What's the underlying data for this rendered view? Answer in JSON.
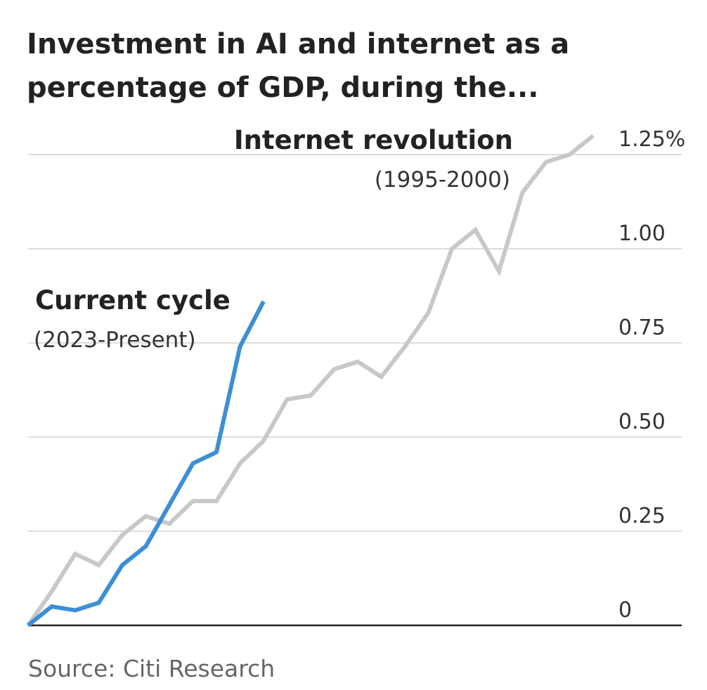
{
  "chart_data": {
    "type": "line",
    "title": [
      "Investment in AI and internet as a",
      "percentage of GDP, during the..."
    ],
    "ylim": [
      0,
      1.25
    ],
    "yticks": [
      0,
      0.25,
      0.5,
      0.75,
      1.0,
      1.25
    ],
    "ytick_labels": [
      "0",
      "0.25",
      "0.50",
      "0.75",
      "1.00",
      "1.25%"
    ],
    "grid": true,
    "y_axis_position": "right",
    "source": "Source: Citi Research",
    "series": [
      {
        "name": "Internet revolution",
        "period": "(1995-2000)",
        "color": "#c8c8c8",
        "values": [
          0,
          0.09,
          0.19,
          0.16,
          0.24,
          0.29,
          0.27,
          0.33,
          0.33,
          0.43,
          0.49,
          0.6,
          0.61,
          0.68,
          0.7,
          0.66,
          0.74,
          0.83,
          1.0,
          1.05,
          0.94,
          1.15,
          1.23,
          1.25,
          1.3
        ]
      },
      {
        "name": "Current cycle",
        "period": "(2023-Present)",
        "color": "#3d8fd4",
        "values": [
          0,
          0.05,
          0.04,
          0.06,
          0.16,
          0.21,
          0.32,
          0.43,
          0.46,
          0.74,
          0.86
        ]
      }
    ]
  }
}
